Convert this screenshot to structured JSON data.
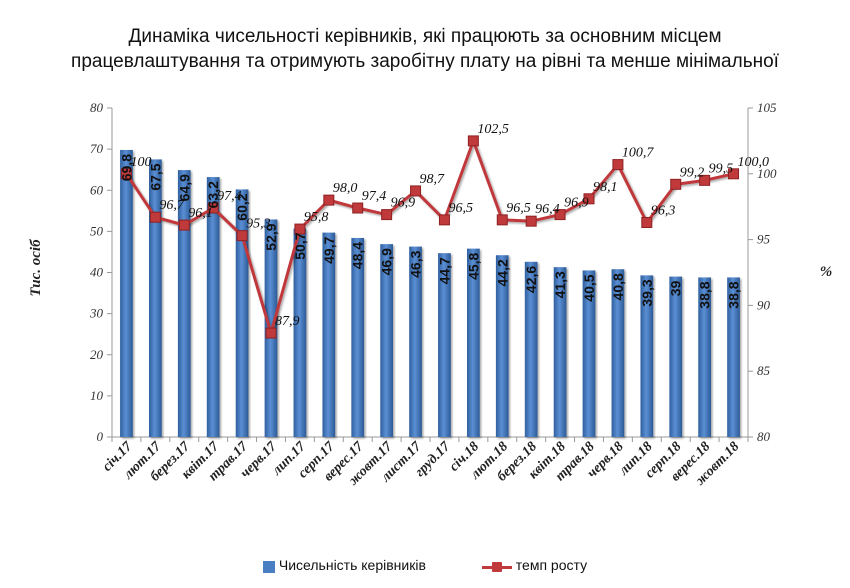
{
  "title": {
    "line1": "Динаміка чисельності керівників, які працюють за основним місцем",
    "line2": "працевлаштування та отримують заробітну плату на рівні та менше мінімальної"
  },
  "chart_data": {
    "type": "bar+line",
    "categories": [
      "січ.17",
      "лют.17",
      "берез.17",
      "квіт.17",
      "трав.17",
      "черв.17",
      "лип.17",
      "серп.17",
      "верес.17",
      "жовт.17",
      "лист.17",
      "груд.17",
      "січ.18",
      "лют.18",
      "берез.18",
      "квіт.18",
      "трав.18",
      "черв.18",
      "лип.18",
      "серп.18",
      "верес.18",
      "жовт.18"
    ],
    "series": [
      {
        "name": "Чисельність керівників",
        "type": "bar",
        "axis": "left",
        "values": [
          69.8,
          67.5,
          64.9,
          63.2,
          60.2,
          52.9,
          50.7,
          49.7,
          48.4,
          46.9,
          46.3,
          44.7,
          45.8,
          44.2,
          42.6,
          41.3,
          40.5,
          40.8,
          39.3,
          39,
          38.8,
          38.8
        ],
        "labels": [
          "69,8",
          "67,5",
          "64,9",
          "63,2",
          "60,2",
          "52,9",
          "50,7",
          "49,7",
          "48,4",
          "46,9",
          "46,3",
          "44,7",
          "45,8",
          "44,2",
          "42,6",
          "41,3",
          "40,5",
          "40,8",
          "39,3",
          "39",
          "38,8",
          "38,8"
        ],
        "color": "#4a7ec2"
      },
      {
        "name": "темп росту",
        "type": "line",
        "axis": "right",
        "values": [
          100,
          96.7,
          96.1,
          97.4,
          95.3,
          87.9,
          95.8,
          98.0,
          97.4,
          96.9,
          98.7,
          96.5,
          102.5,
          96.5,
          96.4,
          96.9,
          98.1,
          100.7,
          96.3,
          99.2,
          99.5,
          100.0
        ],
        "labels": [
          "100",
          "96,7",
          "96,1",
          "97,4",
          "95,3",
          "87,9",
          "95,8",
          "98,0",
          "97,4",
          "96,9",
          "98,7",
          "96,5",
          "102,5",
          "96,5",
          "96,4",
          "96,9",
          "98,1",
          "100,7",
          "96,3",
          "99,2",
          "99,5",
          "100,0"
        ],
        "color": "#c0393b"
      }
    ],
    "ylabel": "Тис. осіб",
    "y2label": "%",
    "ylim": [
      0,
      80
    ],
    "y2lim": [
      80,
      105
    ],
    "yticks": [
      "0",
      "10",
      "20",
      "30",
      "40",
      "50",
      "60",
      "70",
      "80"
    ],
    "y2ticks": [
      "80",
      "85",
      "90",
      "95",
      "100",
      "105"
    ],
    "grid": false,
    "legend_position": "bottom"
  }
}
